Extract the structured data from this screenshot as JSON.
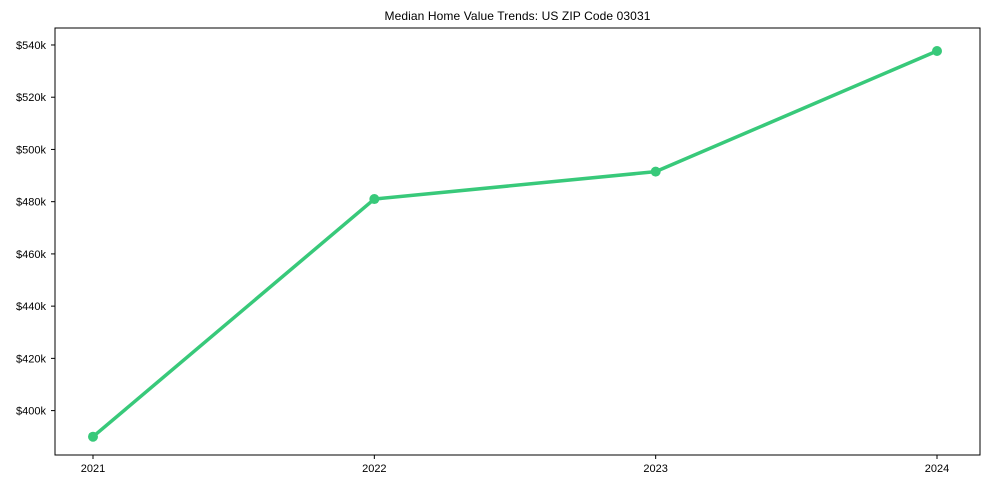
{
  "chart_data": {
    "type": "line",
    "title": "Median Home Value Trends: US ZIP Code 03031",
    "xlabel": "",
    "ylabel": "",
    "categories": [
      "2021",
      "2022",
      "2023",
      "2024"
    ],
    "series": [
      {
        "name": "Median home value",
        "values": [
          390000,
          481000,
          491500,
          537700
        ]
      }
    ],
    "ylim": [
      383000,
      546500
    ],
    "yticks": [
      {
        "value": 400000,
        "label": "$400k"
      },
      {
        "value": 420000,
        "label": "$420k"
      },
      {
        "value": 440000,
        "label": "$440k"
      },
      {
        "value": 460000,
        "label": "$460k"
      },
      {
        "value": 480000,
        "label": "$480k"
      },
      {
        "value": 500000,
        "label": "$500k"
      },
      {
        "value": 520000,
        "label": "$520k"
      },
      {
        "value": 540000,
        "label": "$540k"
      }
    ],
    "grid": false,
    "legend_position": "none",
    "line_color": "#38c97a",
    "marker": "circle",
    "frame_color": "#000000",
    "background_color": "#ffffff"
  }
}
